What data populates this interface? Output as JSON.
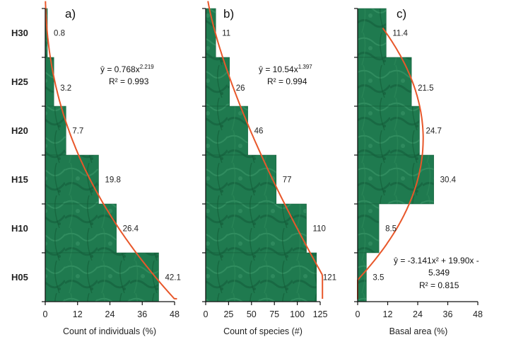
{
  "chart_data": [
    {
      "type": "bar",
      "orientation": "horizontal",
      "panel_label": "a)",
      "categories": [
        "H30",
        "H25",
        "H20",
        "H15",
        "H10",
        "H05"
      ],
      "values": [
        0.8,
        3.2,
        7.7,
        19.8,
        26.4,
        42.1
      ],
      "value_labels": [
        "0.8",
        "3.2",
        "7.7",
        "19.8",
        "26.4",
        "42.1"
      ],
      "xlabel": "Count of individuals (%)",
      "xlim": [
        0,
        48
      ],
      "xticks": [
        0,
        12,
        24,
        36,
        48
      ],
      "xtick_labels": [
        "0",
        "12",
        "24",
        "36",
        "48"
      ],
      "equation": "ŷ = 0.768x",
      "equation_exp": "2.219",
      "r2": "R² = 0.993",
      "fit": {
        "kind": "power",
        "a": 0.768,
        "b": 2.219
      }
    },
    {
      "type": "bar",
      "orientation": "horizontal",
      "panel_label": "b)",
      "categories": [
        "H30",
        "H25",
        "H20",
        "H15",
        "H10",
        "H05"
      ],
      "values": [
        11,
        26,
        46,
        77,
        110,
        121
      ],
      "value_labels": [
        "11",
        "26",
        "46",
        "77",
        "110",
        "121"
      ],
      "xlabel": "Count of species (#)",
      "xlim": [
        0,
        125
      ],
      "xticks": [
        0,
        25,
        50,
        75,
        100,
        125
      ],
      "xtick_labels": [
        "0",
        "25",
        "50",
        "75",
        "100",
        "125"
      ],
      "equation": "ŷ = 10.54x",
      "equation_exp": "1.397",
      "r2": "R² = 0.994",
      "fit": {
        "kind": "power",
        "a": 10.54,
        "b": 1.397
      }
    },
    {
      "type": "bar",
      "orientation": "horizontal",
      "panel_label": "c)",
      "categories": [
        "H30",
        "H25",
        "H20",
        "H15",
        "H10",
        "H05"
      ],
      "values": [
        11.4,
        21.5,
        24.7,
        30.4,
        8.5,
        3.5
      ],
      "value_labels": [
        "11.4",
        "21.5",
        "24.7",
        "30.4",
        "8.5",
        "3.5"
      ],
      "xlabel": "Basal area (%)",
      "xlim": [
        0,
        48
      ],
      "xticks": [
        0,
        12,
        24,
        36,
        48
      ],
      "xtick_labels": [
        "0",
        "12",
        "24",
        "36",
        "48"
      ],
      "equation_line1": "ŷ = -3.141x² + 19.90x -",
      "equation_line2": "5.349",
      "r2": "R² = 0.815",
      "fit": {
        "kind": "poly2",
        "a": -3.141,
        "b": 19.9,
        "c": -5.349
      }
    }
  ],
  "colors": {
    "bar": "#1f7a4f",
    "bar_dark": "#125c38",
    "bar_light": "#3f9a6c",
    "fit_line": "#e8572a",
    "axis": "#111111"
  }
}
